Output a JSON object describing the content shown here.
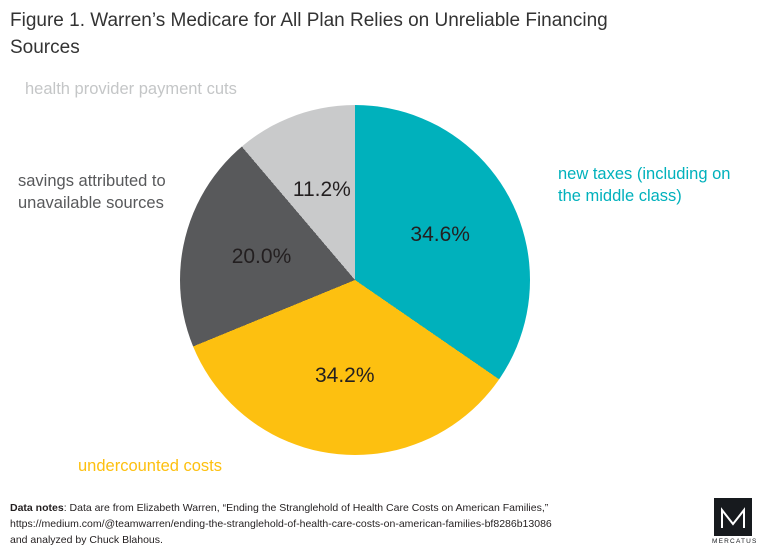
{
  "title": "Figure 1. Warren’s Medicare for All Plan Relies on Unreliable Financing Sources",
  "chart_data": {
    "type": "pie",
    "title": "Figure 1. Warren’s Medicare for All Plan Relies on Unreliable Financing Sources",
    "unit": "percent",
    "start_angle_deg": 0,
    "direction": "clockwise",
    "legend_position": "labels-around-pie",
    "slices": [
      {
        "label": "new taxes (including on the middle class)",
        "value": 34.6,
        "pct_label": "34.6%",
        "color": "#00b1bc"
      },
      {
        "label": "undercounted costs",
        "value": 34.2,
        "pct_label": "34.2%",
        "color": "#fdc010"
      },
      {
        "label": "savings attributed to unavailable sources",
        "value": 20.0,
        "pct_label": "20.0%",
        "color": "#58595b"
      },
      {
        "label": "health provider payment cuts",
        "value": 11.2,
        "pct_label": "11.2%",
        "color": "#c9cacb"
      }
    ]
  },
  "notes": {
    "label": "Data notes",
    "line1": ": Data are from Elizabeth Warren, “Ending the Stranglehold of Health Care Costs on American Families,”",
    "line2": "https://medium.com/@teamwarren/ending-the-stranglehold-of-health-care-costs-on-american-families-bf8286b13086",
    "line3": "and analyzed by Chuck Blahous."
  },
  "logo": {
    "text": "MERCATUS"
  }
}
